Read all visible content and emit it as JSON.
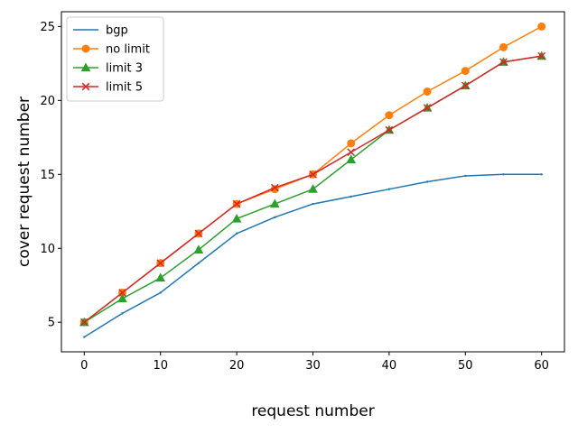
{
  "chart_data": {
    "type": "line",
    "title": "",
    "xlabel": "request number",
    "ylabel": "cover request number",
    "xlim": [
      -3,
      63
    ],
    "ylim": [
      3,
      26
    ],
    "x_ticks": [
      0,
      10,
      20,
      30,
      40,
      50,
      60
    ],
    "y_ticks": [
      5,
      10,
      15,
      20,
      25
    ],
    "grid": false,
    "legend_position": "top-left",
    "x": [
      0,
      5,
      10,
      15,
      20,
      25,
      30,
      35,
      40,
      45,
      50,
      55,
      60
    ],
    "series": [
      {
        "name": "bgp",
        "color": "#1f77b4",
        "marker": "point",
        "values": [
          4.0,
          5.6,
          7.0,
          9.0,
          11.0,
          12.1,
          13.0,
          13.5,
          14.0,
          14.5,
          14.9,
          15.0,
          15.0
        ]
      },
      {
        "name": "no limit",
        "color": "#ff7f0e",
        "marker": "circle",
        "values": [
          5.0,
          7.0,
          9.0,
          11.0,
          13.0,
          14.0,
          15.0,
          17.1,
          19.0,
          20.6,
          22.0,
          23.6,
          25.0
        ]
      },
      {
        "name": "limit 3",
        "color": "#2ca02c",
        "marker": "triangle",
        "values": [
          5.0,
          6.6,
          8.0,
          9.9,
          12.0,
          13.0,
          14.0,
          16.0,
          18.0,
          19.5,
          21.0,
          22.6,
          23.0
        ]
      },
      {
        "name": "limit 5",
        "color": "#d62728",
        "marker": "x",
        "values": [
          5.0,
          7.0,
          9.0,
          11.0,
          13.0,
          14.1,
          15.0,
          16.5,
          18.0,
          19.5,
          21.0,
          22.6,
          23.0
        ]
      }
    ]
  }
}
